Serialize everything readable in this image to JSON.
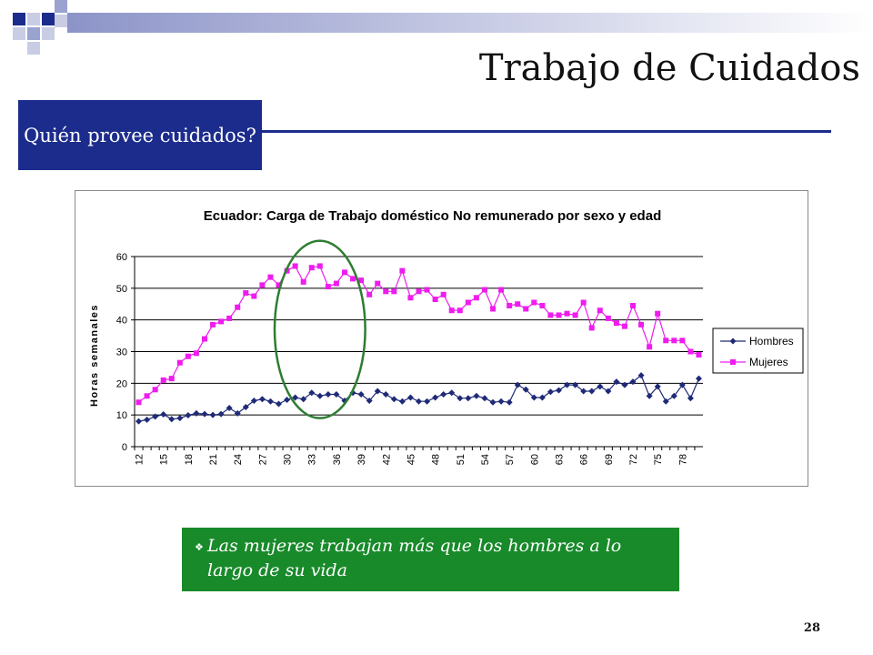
{
  "slide": {
    "title": "Trabajo de Cuidados",
    "subtitle": "Quién provee cuidados?",
    "note": "Las mujeres trabajan más que los hombres a lo largo de su vida",
    "page_number": "28",
    "colors": {
      "navy": "#1c2c8c",
      "green": "#188a2a",
      "highlight": "#2e7d32"
    }
  },
  "chart_data": {
    "type": "line",
    "title": "Ecuador: Carga de Trabajo doméstico No remunerado por sexo y edad",
    "xlabel": "",
    "ylabel": "Horas semanales",
    "x": [
      12,
      13,
      14,
      15,
      16,
      17,
      18,
      19,
      20,
      21,
      22,
      23,
      24,
      25,
      26,
      27,
      28,
      29,
      30,
      31,
      32,
      33,
      34,
      35,
      36,
      37,
      38,
      39,
      40,
      41,
      42,
      43,
      44,
      45,
      46,
      47,
      48,
      49,
      50,
      51,
      52,
      53,
      54,
      55,
      56,
      57,
      58,
      59,
      60,
      61,
      62,
      63,
      64,
      65,
      66,
      67,
      68,
      69,
      70,
      71,
      72,
      73,
      74,
      75,
      76,
      77,
      78,
      79,
      80
    ],
    "x_ticks": [
      12,
      15,
      18,
      21,
      24,
      27,
      30,
      33,
      36,
      39,
      42,
      45,
      48,
      51,
      54,
      57,
      60,
      63,
      66,
      69,
      72,
      75,
      78
    ],
    "ylim": [
      0,
      60
    ],
    "y_ticks": [
      0,
      10,
      20,
      30,
      40,
      50,
      60
    ],
    "grid": true,
    "legend_position": "right",
    "series": [
      {
        "name": "Hombres",
        "color": "#1f2a78",
        "marker": "diamond",
        "values": [
          8,
          8.5,
          9.5,
          10.2,
          8.7,
          9,
          9.9,
          10.5,
          10.3,
          10,
          10.3,
          12.2,
          10.5,
          12.5,
          14.5,
          15,
          14.3,
          13.5,
          14.8,
          15.5,
          15,
          17,
          16,
          16.5,
          16.5,
          14.5,
          17,
          16.5,
          14.5,
          17.5,
          16.5,
          15,
          14.3,
          15.5,
          14.3,
          14.3,
          15.5,
          16.5,
          17,
          15.3,
          15.3,
          16,
          15.3,
          14,
          14.3,
          14,
          19.5,
          18,
          15.5,
          15.5,
          17.3,
          17.8,
          19.5,
          19.5,
          17.5,
          17.5,
          19,
          17.5,
          20.5,
          19.5,
          20.5,
          22.5,
          16,
          19,
          14.3,
          16,
          19.5,
          15.3,
          21.5
        ]
      },
      {
        "name": "Mujeres",
        "color": "#ee1cee",
        "marker": "square",
        "values": [
          14,
          16,
          18,
          21,
          21.5,
          26.5,
          28.5,
          29.5,
          34,
          38.5,
          39.5,
          40.5,
          44,
          48.5,
          47.5,
          51,
          53.5,
          51,
          55.5,
          57,
          52,
          56.5,
          57,
          50.5,
          51.5,
          55,
          53,
          52.5,
          48,
          51.5,
          49,
          49,
          55.5,
          47,
          49,
          49.5,
          46.5,
          48,
          43,
          43,
          45.5,
          47,
          49.5,
          43.5,
          49.5,
          44.5,
          45,
          43.5,
          45.5,
          44.5,
          41.5,
          41.5,
          42,
          41.5,
          45.5,
          37.5,
          43,
          40.5,
          39,
          38,
          44.5,
          38.5,
          31.5,
          42,
          33.5,
          33.5,
          33.5,
          30,
          29
        ]
      }
    ],
    "annotations": [
      {
        "type": "ellipse",
        "x_range": [
          28.5,
          39.5
        ],
        "y_range": [
          9,
          65
        ],
        "color": "#2e7d32"
      }
    ]
  }
}
